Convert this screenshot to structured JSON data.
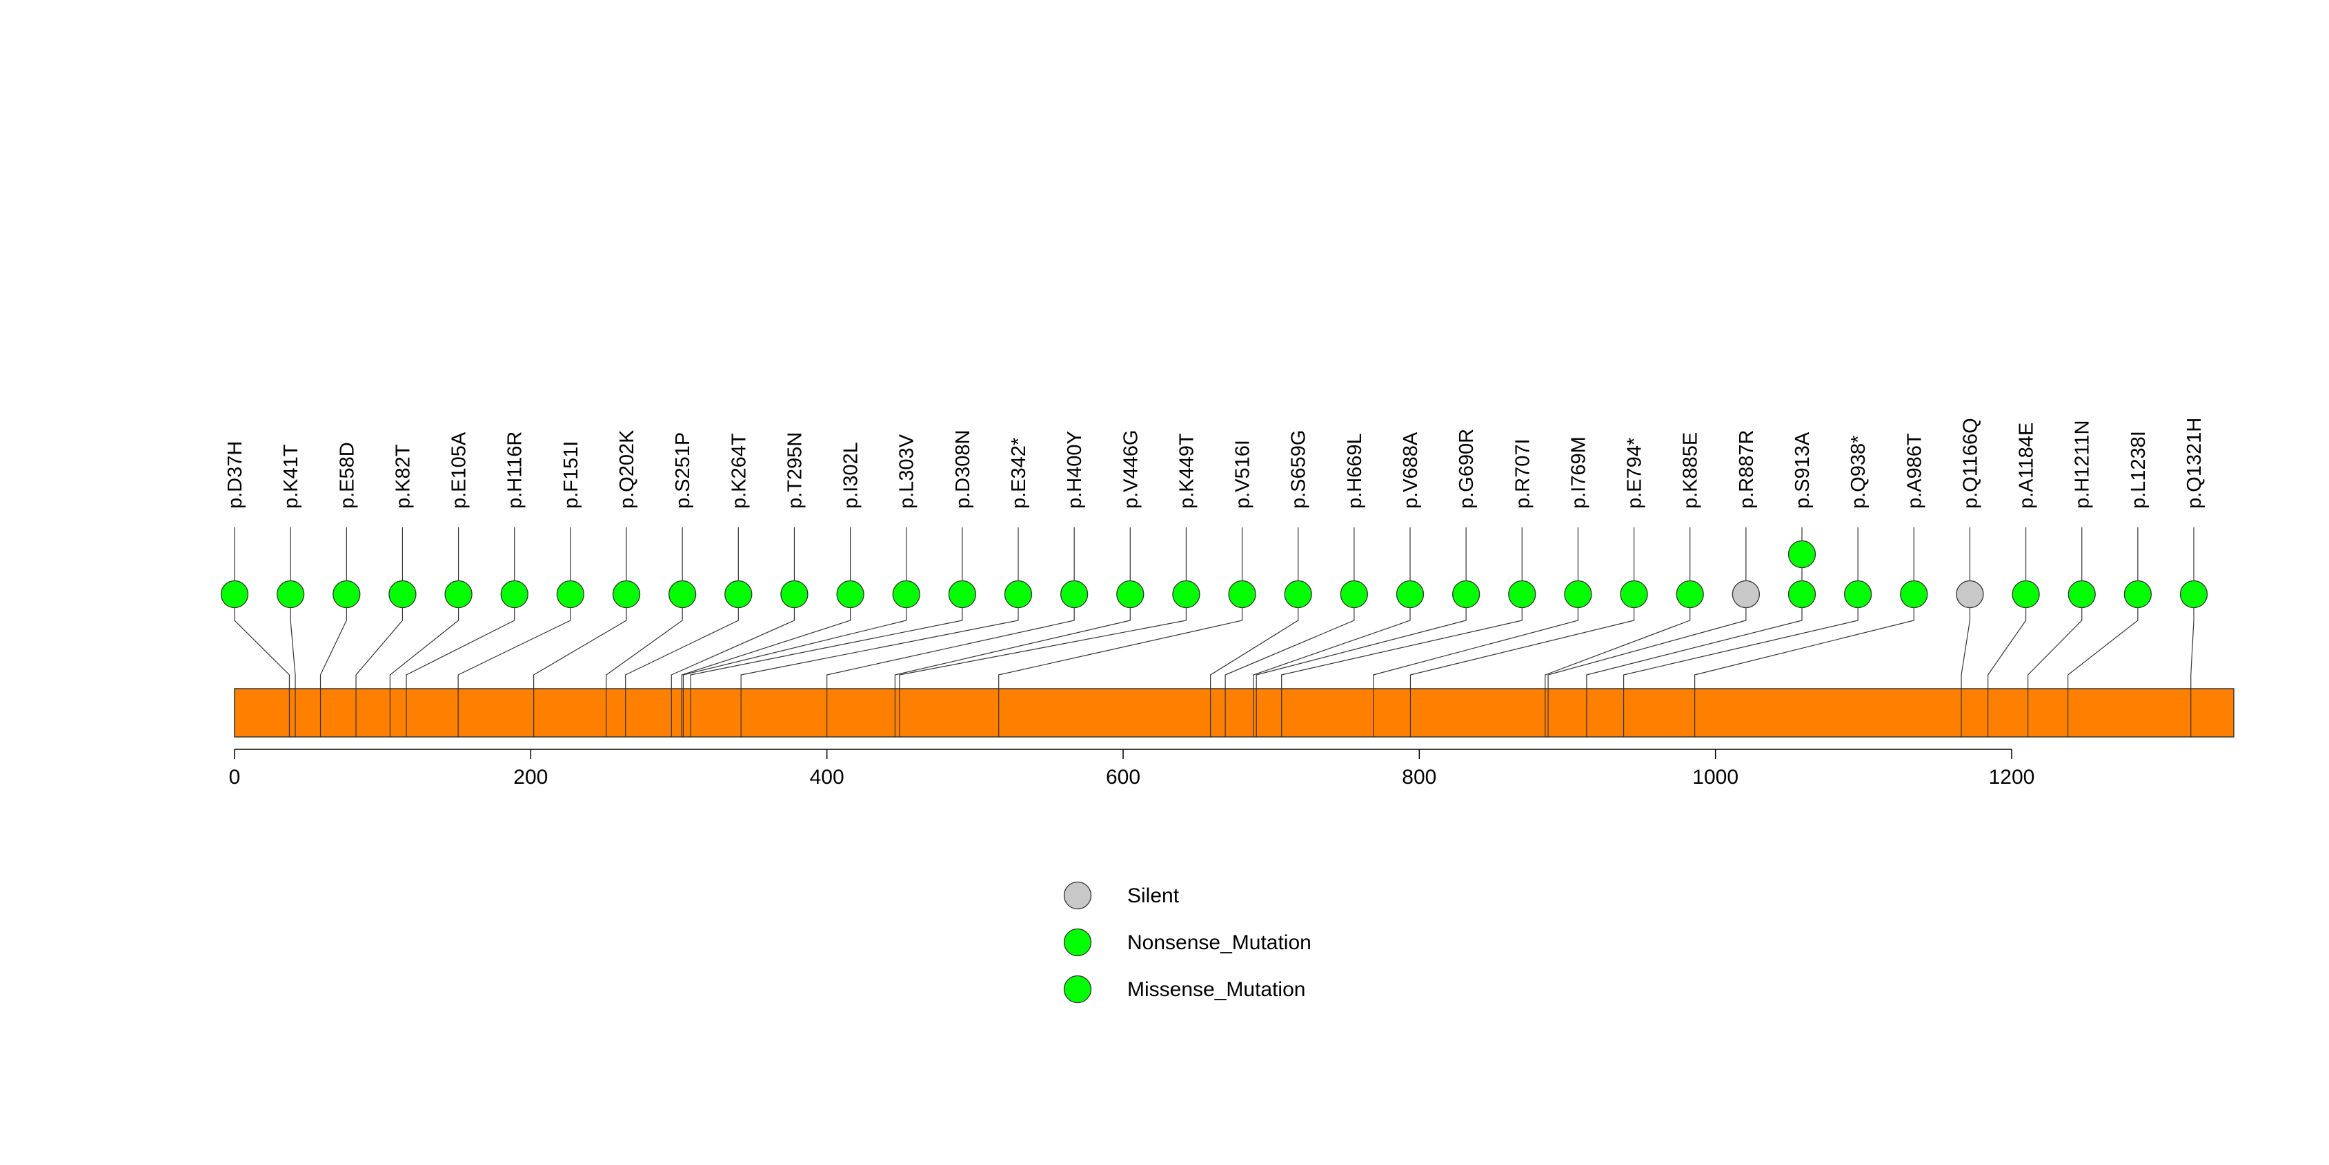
{
  "chart_data": {
    "type": "lollipop",
    "title": "",
    "xlabel": "",
    "ylabel": "",
    "xlim": [
      0,
      1350
    ],
    "protein_length": 1350,
    "x_ticks": [
      0,
      200,
      400,
      600,
      800,
      1000,
      1200
    ],
    "x_tick_labels": [
      "0",
      "200",
      "400",
      "600",
      "800",
      "1000",
      "1200"
    ],
    "colors": {
      "protein_bar": "#FF8000",
      "Silent": "#C8C8C8",
      "Nonsense_Mutation": "#00FF00",
      "Missense_Mutation": "#00FF00",
      "stroke": "#333333"
    },
    "legend": {
      "position": "bottom-center",
      "entries": [
        {
          "label": "Silent",
          "color": "#C8C8C8"
        },
        {
          "label": "Nonsense_Mutation",
          "color": "#00FF00"
        },
        {
          "label": "Missense_Mutation",
          "color": "#00FF00"
        }
      ]
    },
    "mutations": [
      {
        "label": "p.D37H",
        "position": 37,
        "count": 1,
        "type": "Missense_Mutation"
      },
      {
        "label": "p.K41T",
        "position": 41,
        "count": 1,
        "type": "Missense_Mutation"
      },
      {
        "label": "p.E58D",
        "position": 58,
        "count": 1,
        "type": "Missense_Mutation"
      },
      {
        "label": "p.K82T",
        "position": 82,
        "count": 1,
        "type": "Missense_Mutation"
      },
      {
        "label": "p.E105A",
        "position": 105,
        "count": 1,
        "type": "Missense_Mutation"
      },
      {
        "label": "p.H116R",
        "position": 116,
        "count": 1,
        "type": "Missense_Mutation"
      },
      {
        "label": "p.F151I",
        "position": 151,
        "count": 1,
        "type": "Missense_Mutation"
      },
      {
        "label": "p.Q202K",
        "position": 202,
        "count": 1,
        "type": "Missense_Mutation"
      },
      {
        "label": "p.S251P",
        "position": 251,
        "count": 1,
        "type": "Missense_Mutation"
      },
      {
        "label": "p.K264T",
        "position": 264,
        "count": 1,
        "type": "Missense_Mutation"
      },
      {
        "label": "p.T295N",
        "position": 295,
        "count": 1,
        "type": "Missense_Mutation"
      },
      {
        "label": "p.I302L",
        "position": 302,
        "count": 1,
        "type": "Missense_Mutation"
      },
      {
        "label": "p.L303V",
        "position": 303,
        "count": 1,
        "type": "Missense_Mutation"
      },
      {
        "label": "p.D308N",
        "position": 308,
        "count": 1,
        "type": "Missense_Mutation"
      },
      {
        "label": "p.E342*",
        "position": 342,
        "count": 1,
        "type": "Nonsense_Mutation"
      },
      {
        "label": "p.H400Y",
        "position": 400,
        "count": 1,
        "type": "Missense_Mutation"
      },
      {
        "label": "p.V446G",
        "position": 446,
        "count": 1,
        "type": "Missense_Mutation"
      },
      {
        "label": "p.K449T",
        "position": 449,
        "count": 1,
        "type": "Missense_Mutation"
      },
      {
        "label": "p.V516I",
        "position": 516,
        "count": 1,
        "type": "Missense_Mutation"
      },
      {
        "label": "p.S659G",
        "position": 659,
        "count": 1,
        "type": "Missense_Mutation"
      },
      {
        "label": "p.H669L",
        "position": 669,
        "count": 1,
        "type": "Missense_Mutation"
      },
      {
        "label": "p.V688A",
        "position": 688,
        "count": 1,
        "type": "Missense_Mutation"
      },
      {
        "label": "p.G690R",
        "position": 690,
        "count": 1,
        "type": "Missense_Mutation"
      },
      {
        "label": "p.R707I",
        "position": 707,
        "count": 1,
        "type": "Missense_Mutation"
      },
      {
        "label": "p.I769M",
        "position": 769,
        "count": 1,
        "type": "Missense_Mutation"
      },
      {
        "label": "p.E794*",
        "position": 794,
        "count": 1,
        "type": "Nonsense_Mutation"
      },
      {
        "label": "p.K885E",
        "position": 885,
        "count": 1,
        "type": "Missense_Mutation"
      },
      {
        "label": "p.R887R",
        "position": 887,
        "count": 1,
        "type": "Silent"
      },
      {
        "label": "p.S913A",
        "position": 913,
        "count": 2,
        "type": "Missense_Mutation"
      },
      {
        "label": "p.Q938*",
        "position": 938,
        "count": 1,
        "type": "Nonsense_Mutation"
      },
      {
        "label": "p.A986T",
        "position": 986,
        "count": 1,
        "type": "Missense_Mutation"
      },
      {
        "label": "p.Q1166Q",
        "position": 1166,
        "count": 1,
        "type": "Silent"
      },
      {
        "label": "p.A1184E",
        "position": 1184,
        "count": 1,
        "type": "Missense_Mutation"
      },
      {
        "label": "p.H1211N",
        "position": 1211,
        "count": 1,
        "type": "Missense_Mutation"
      },
      {
        "label": "p.L1238I",
        "position": 1238,
        "count": 1,
        "type": "Missense_Mutation"
      },
      {
        "label": "p.Q1321H",
        "position": 1321,
        "count": 1,
        "type": "Missense_Mutation"
      }
    ]
  }
}
